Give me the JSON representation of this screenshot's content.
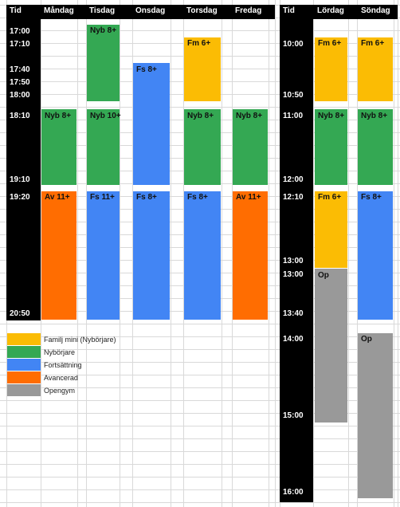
{
  "colors": {
    "black": "#000000",
    "yellow": "#fbbc04",
    "green": "#34a853",
    "blue": "#4285f4",
    "orange": "#ff6d01",
    "gray": "#999999",
    "white_text": "#ffffff",
    "dark_text": "#222222"
  },
  "headers": {
    "left_time": "Tid",
    "monday": "Måndag",
    "tuesday": "Tisdag",
    "wednesday": "Onsdag",
    "thursday": "Torsdag",
    "friday": "Fredag",
    "right_time": "Tid",
    "saturday": "Lördag",
    "sunday": "Söndag"
  },
  "left_times": [
    "17:00",
    "17:10",
    "17:40",
    "17:50",
    "18:00",
    "18:10",
    "19:10",
    "19:20",
    "20:50"
  ],
  "right_times": [
    "10:00",
    "10:50",
    "11:00",
    "12:00",
    "12:10",
    "13:00",
    "13:00",
    "13:40",
    "14:00",
    "15:00",
    "16:00"
  ],
  "blocks": {
    "tue_nyb_early": {
      "label": "Nyb 8+",
      "color": "green"
    },
    "wed_fs": {
      "label": "Fs 8+",
      "color": "blue"
    },
    "thu_fm": {
      "label": "Fm 6+",
      "color": "yellow"
    },
    "mon_nyb": {
      "label": "Nyb 8+",
      "color": "green"
    },
    "tue_nyb": {
      "label": "Nyb 10+",
      "color": "green"
    },
    "thu_nyb": {
      "label": "Nyb 8+",
      "color": "green"
    },
    "fri_nyb": {
      "label": "Nyb 8+",
      "color": "green"
    },
    "mon_av": {
      "label": "Av 11+",
      "color": "orange"
    },
    "tue_fs": {
      "label": "Fs 11+",
      "color": "blue"
    },
    "wed_fs2": {
      "label": "Fs 8+",
      "color": "blue"
    },
    "thu_fs": {
      "label": "Fs 8+",
      "color": "blue"
    },
    "fri_av": {
      "label": "Av 11+",
      "color": "orange"
    },
    "sat_fm": {
      "label": "Fm 6+",
      "color": "yellow"
    },
    "sun_fm": {
      "label": "Fm 6+",
      "color": "yellow"
    },
    "sat_nyb": {
      "label": "Nyb 8+",
      "color": "green"
    },
    "sun_nyb": {
      "label": "Nyb 8+",
      "color": "green"
    },
    "sat_fm2": {
      "label": "Fm 6+",
      "color": "yellow"
    },
    "sun_fs": {
      "label": "Fs 8+",
      "color": "blue"
    },
    "sat_op": {
      "label": "Op",
      "color": "gray"
    },
    "sun_op": {
      "label": "Op",
      "color": "gray"
    }
  },
  "legend": [
    {
      "label": "Familj mini (Nybörjare)",
      "color": "yellow"
    },
    {
      "label": "Nybörjare",
      "color": "green"
    },
    {
      "label": "Fortsättning",
      "color": "blue"
    },
    {
      "label": "Avancerad",
      "color": "orange"
    },
    {
      "label": "Opengym",
      "color": "gray"
    }
  ]
}
